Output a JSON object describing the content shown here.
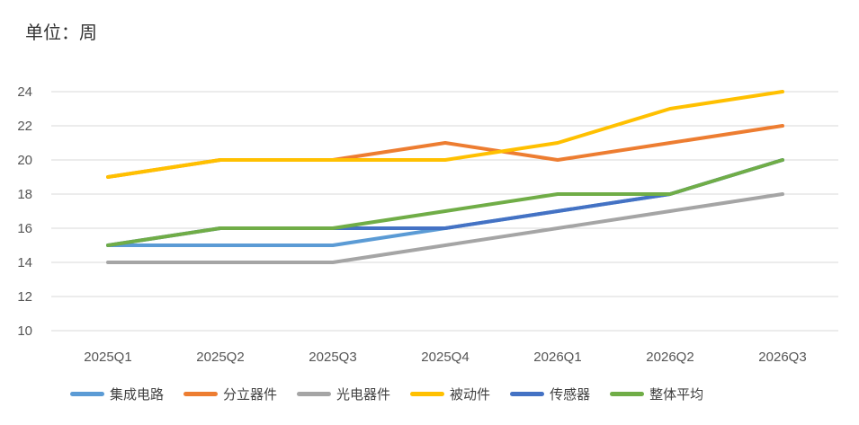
{
  "unit_label": "单位：周",
  "chart_data": {
    "type": "line",
    "categories": [
      "2025Q1",
      "2025Q2",
      "2025Q3",
      "2025Q4",
      "2026Q1",
      "2026Q2",
      "2026Q3"
    ],
    "ylim": [
      10,
      24
    ],
    "yticks": [
      10,
      12,
      14,
      16,
      18,
      20,
      22,
      24
    ],
    "grid": true,
    "legend_position": "bottom",
    "series": [
      {
        "name": "集成电路",
        "color": "#5B9BD5",
        "values": [
          15,
          15,
          15,
          16,
          17,
          18,
          20
        ]
      },
      {
        "name": "分立器件",
        "color": "#ED7D31",
        "values": [
          19,
          20,
          20,
          21,
          20,
          21,
          22
        ]
      },
      {
        "name": "光电器件",
        "color": "#A5A5A5",
        "values": [
          14,
          14,
          14,
          15,
          16,
          17,
          18
        ]
      },
      {
        "name": "被动件",
        "color": "#FFC000",
        "values": [
          19,
          20,
          20,
          20,
          21,
          23,
          24
        ]
      },
      {
        "name": "传感器",
        "color": "#4472C4",
        "values": [
          15,
          16,
          16,
          16,
          17,
          18,
          20
        ]
      },
      {
        "name": "整体平均",
        "color": "#70AD47",
        "values": [
          15,
          16,
          16,
          17,
          18,
          18,
          20
        ]
      }
    ]
  }
}
